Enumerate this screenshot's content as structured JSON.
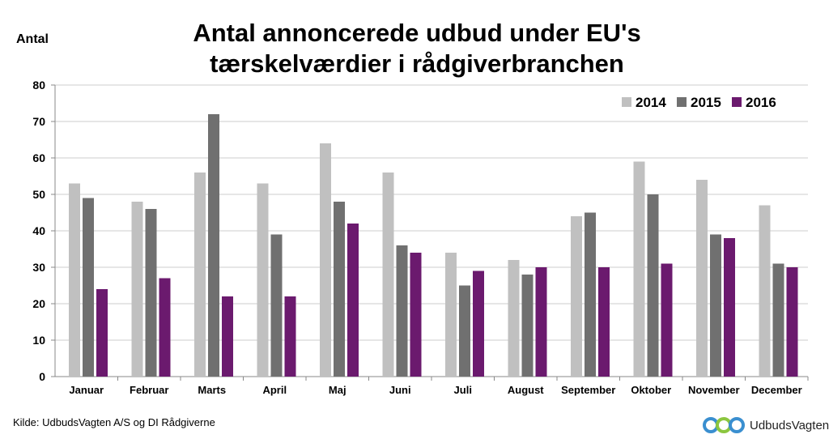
{
  "title_line1": "Antal annoncerede udbud under EU's",
  "title_line2": "tærskelværdier i rådgiverbranchen",
  "source": "Kilde: UdbudsVagten A/S og DI Rådgiverne",
  "brand": "UdbudsVagten",
  "chart_data": {
    "type": "bar",
    "title": "Antal annoncerede udbud under EU's tærskelværdier i rådgiverbranchen",
    "ylabel": "Antal",
    "xlabel": "",
    "ylim": [
      0,
      80
    ],
    "yticks": [
      0,
      10,
      20,
      30,
      40,
      50,
      60,
      70,
      80
    ],
    "grid": true,
    "legend_position": "top-right",
    "categories": [
      "Januar",
      "Februar",
      "Marts",
      "April",
      "Maj",
      "Juni",
      "Juli",
      "August",
      "September",
      "Oktober",
      "November",
      "December"
    ],
    "series": [
      {
        "name": "2014",
        "color": "#c0c0c0",
        "values": [
          53,
          48,
          56,
          53,
          64,
          56,
          34,
          32,
          44,
          59,
          54,
          47
        ]
      },
      {
        "name": "2015",
        "color": "#707070",
        "values": [
          49,
          46,
          72,
          39,
          48,
          36,
          25,
          28,
          45,
          50,
          39,
          31
        ]
      },
      {
        "name": "2016",
        "color": "#6b1a6e",
        "values": [
          24,
          27,
          22,
          22,
          42,
          34,
          29,
          30,
          30,
          31,
          38,
          30
        ]
      }
    ]
  }
}
